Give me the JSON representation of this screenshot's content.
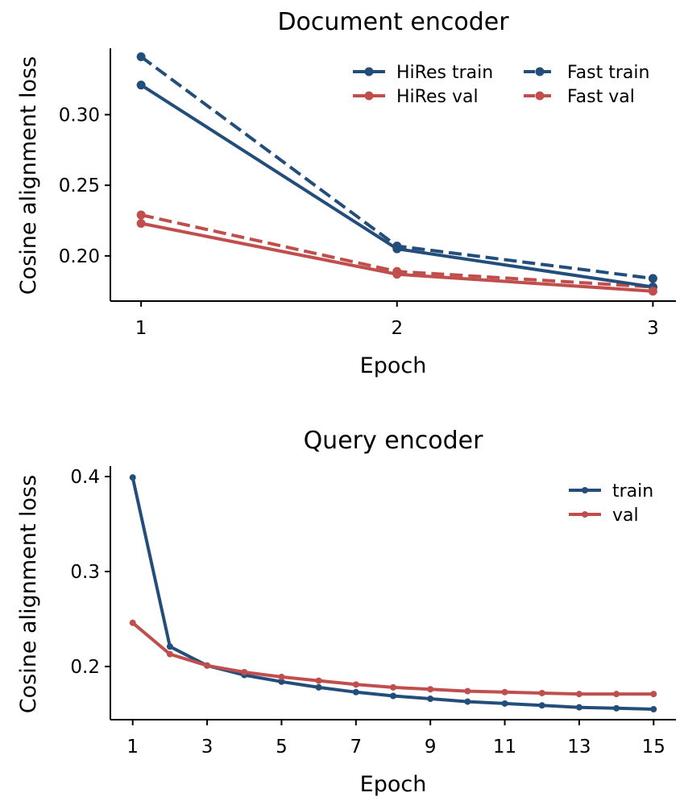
{
  "chart_data": [
    {
      "type": "line",
      "title": "Document encoder",
      "xlabel": "Epoch",
      "ylabel": "Cosine alignment loss",
      "x": [
        1,
        2,
        3
      ],
      "xticks": [
        "1",
        "2",
        "3"
      ],
      "yticks": [
        "0.20",
        "0.25",
        "0.30"
      ],
      "xlim": [
        0.88,
        3.09
      ],
      "ylim": [
        0.168,
        0.347
      ],
      "grid": false,
      "legend": "top-right",
      "series": [
        {
          "name": "HiRes train",
          "values": [
            0.321,
            0.205,
            0.178
          ],
          "color": "#234e7b",
          "style": "solid"
        },
        {
          "name": "HiRes val",
          "values": [
            0.223,
            0.187,
            0.175
          ],
          "color": "#bf4e4c",
          "style": "solid"
        },
        {
          "name": "Fast train",
          "values": [
            0.341,
            0.207,
            0.184
          ],
          "color": "#234e7b",
          "style": "dashed"
        },
        {
          "name": "Fast val",
          "values": [
            0.229,
            0.189,
            0.178
          ],
          "color": "#bf4e4c",
          "style": "dashed"
        }
      ]
    },
    {
      "type": "line",
      "title": "Query encoder",
      "xlabel": "Epoch",
      "ylabel": "Cosine alignment loss",
      "x": [
        1,
        2,
        3,
        4,
        5,
        6,
        7,
        8,
        9,
        10,
        11,
        12,
        13,
        14,
        15
      ],
      "xticks": [
        "1",
        "3",
        "5",
        "7",
        "9",
        "11",
        "13",
        "15"
      ],
      "yticks": [
        "0.2",
        "0.3",
        "0.4"
      ],
      "xlim": [
        0.4,
        15.6
      ],
      "ylim": [
        0.144,
        0.411
      ],
      "grid": false,
      "legend": "top-right",
      "series": [
        {
          "name": "train",
          "values": [
            0.399,
            0.221,
            0.201,
            0.191,
            0.184,
            0.178,
            0.173,
            0.169,
            0.166,
            0.163,
            0.161,
            0.159,
            0.157,
            0.156,
            0.155
          ],
          "color": "#234e7b",
          "style": "solid"
        },
        {
          "name": "val",
          "values": [
            0.246,
            0.213,
            0.201,
            0.194,
            0.189,
            0.185,
            0.181,
            0.178,
            0.176,
            0.174,
            0.173,
            0.172,
            0.171,
            0.171,
            0.171
          ],
          "color": "#bf4e4c",
          "style": "solid"
        }
      ]
    }
  ]
}
